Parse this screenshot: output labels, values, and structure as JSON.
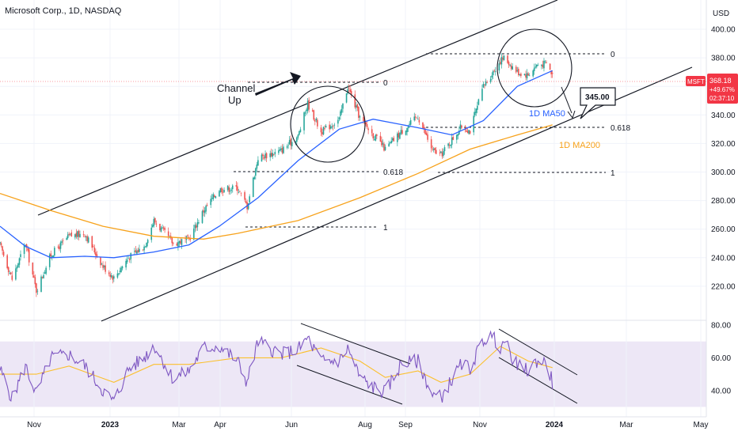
{
  "header": {
    "title": "Microsoft Corp., 1D, NASDAQ"
  },
  "currency": "USD",
  "price_tag": {
    "symbol": "MSFT",
    "price": "368.18",
    "change": "+49.67%",
    "countdown": "02:37:10"
  },
  "annotations": {
    "channel_line1": "Channel",
    "channel_line2": "Up",
    "target": "345.00",
    "ma50_label": "1D MA50",
    "ma200_label": "1D MA200",
    "fib_top_left": "0",
    "fib_mid_left": "0.618",
    "fib_bot_left": "1",
    "fib_top_right": "0",
    "fib_mid_right": "0.618",
    "fib_bot_right": "1"
  },
  "colors": {
    "up": "#26a69a",
    "down": "#ef5350",
    "ma50": "#2962ff",
    "ma200": "#f7a21b",
    "rsi": "#7e57c2",
    "rsi_ma": "#fbc02d",
    "band": "#ede7f6",
    "line": "#131722",
    "price_tag": "#f23645"
  },
  "chart_data": [
    {
      "type": "candlestick",
      "ylim": [
        210,
        410
      ],
      "yticks": [
        "400.00",
        "380.00",
        "360.00",
        "340.00",
        "320.00",
        "300.00",
        "280.00",
        "260.00",
        "240.00",
        "220.00"
      ],
      "xticks": [
        "Nov",
        "2023",
        "Mar",
        "Apr",
        "Jun",
        "Aug",
        "Sep",
        "Nov",
        "2024",
        "Mar",
        "May"
      ],
      "last_price": 368.18,
      "price_path": [
        [
          "2022-10-04",
          249
        ],
        [
          "2022-10-14",
          225
        ],
        [
          "2022-10-25",
          250
        ],
        [
          "2022-11-03",
          217
        ],
        [
          "2022-11-15",
          242
        ],
        [
          "2022-11-30",
          255
        ],
        [
          "2022-12-13",
          257
        ],
        [
          "2022-12-28",
          234
        ],
        [
          "2023-01-06",
          226
        ],
        [
          "2023-01-18",
          240
        ],
        [
          "2023-01-31",
          248
        ],
        [
          "2023-02-08",
          266
        ],
        [
          "2023-02-24",
          250
        ],
        [
          "2023-03-09",
          253
        ],
        [
          "2023-03-21",
          273
        ],
        [
          "2023-04-03",
          288
        ],
        [
          "2023-04-18",
          289
        ],
        [
          "2023-04-26",
          276
        ],
        [
          "2023-05-05",
          310
        ],
        [
          "2023-05-24",
          315
        ],
        [
          "2023-06-07",
          325
        ],
        [
          "2023-06-15",
          348
        ],
        [
          "2023-06-26",
          328
        ],
        [
          "2023-07-11",
          337
        ],
        [
          "2023-07-18",
          360
        ],
        [
          "2023-07-28",
          338
        ],
        [
          "2023-08-08",
          326
        ],
        [
          "2023-08-18",
          316
        ],
        [
          "2023-08-31",
          328
        ],
        [
          "2023-09-14",
          339
        ],
        [
          "2023-09-26",
          315
        ],
        [
          "2023-10-03",
          312
        ],
        [
          "2023-10-20",
          332
        ],
        [
          "2023-10-27",
          329
        ],
        [
          "2023-11-07",
          360
        ],
        [
          "2023-11-14",
          369
        ],
        [
          "2023-11-21",
          378
        ],
        [
          "2023-11-24",
          380
        ],
        [
          "2023-12-05",
          370
        ],
        [
          "2023-12-14",
          368
        ],
        [
          "2023-12-21",
          375
        ],
        [
          "2023-12-29",
          376
        ],
        [
          "2024-01-03",
          368
        ]
      ],
      "ma50": [
        [
          "2022-10-04",
          262
        ],
        [
          "2022-10-25",
          248
        ],
        [
          "2022-11-15",
          240
        ],
        [
          "2022-12-13",
          241
        ],
        [
          "2023-01-06",
          240
        ],
        [
          "2023-02-08",
          244
        ],
        [
          "2023-03-09",
          249
        ],
        [
          "2023-04-03",
          262
        ],
        [
          "2023-05-05",
          282
        ],
        [
          "2023-06-07",
          308
        ],
        [
          "2023-07-11",
          330
        ],
        [
          "2023-08-08",
          337
        ],
        [
          "2023-09-14",
          331
        ],
        [
          "2023-10-12",
          326
        ],
        [
          "2023-11-07",
          336
        ],
        [
          "2023-12-05",
          360
        ],
        [
          "2024-01-03",
          371
        ]
      ],
      "ma200": [
        [
          "2022-10-04",
          285
        ],
        [
          "2022-11-15",
          273
        ],
        [
          "2022-12-28",
          262
        ],
        [
          "2023-02-08",
          255
        ],
        [
          "2023-03-21",
          253
        ],
        [
          "2023-04-18",
          257
        ],
        [
          "2023-06-07",
          266
        ],
        [
          "2023-07-28",
          282
        ],
        [
          "2023-09-14",
          299
        ],
        [
          "2023-10-27",
          316
        ],
        [
          "2023-12-05",
          326
        ],
        [
          "2024-01-03",
          333
        ]
      ],
      "ma50_label": "1D MA50",
      "ma200_label": "1D MA200"
    },
    {
      "type": "line",
      "ylim": [
        25,
        82
      ],
      "yticks": [
        "80.00",
        "60.00",
        "40.00"
      ],
      "band": [
        30,
        70
      ],
      "rsi_path": [
        [
          "2022-10-04",
          53
        ],
        [
          "2022-10-14",
          35
        ],
        [
          "2022-10-25",
          55
        ],
        [
          "2022-11-03",
          38
        ],
        [
          "2022-11-15",
          60
        ],
        [
          "2022-11-30",
          62
        ],
        [
          "2022-12-13",
          55
        ],
        [
          "2022-12-28",
          40
        ],
        [
          "2023-01-06",
          33
        ],
        [
          "2023-01-18",
          53
        ],
        [
          "2023-01-31",
          60
        ],
        [
          "2023-02-08",
          68
        ],
        [
          "2023-02-24",
          47
        ],
        [
          "2023-03-09",
          52
        ],
        [
          "2023-03-21",
          66
        ],
        [
          "2023-04-03",
          67
        ],
        [
          "2023-04-18",
          58
        ],
        [
          "2023-04-26",
          45
        ],
        [
          "2023-05-05",
          70
        ],
        [
          "2023-05-24",
          62
        ],
        [
          "2023-06-07",
          65
        ],
        [
          "2023-06-15",
          72
        ],
        [
          "2023-06-26",
          58
        ],
        [
          "2023-07-11",
          58
        ],
        [
          "2023-07-18",
          66
        ],
        [
          "2023-07-28",
          48
        ],
        [
          "2023-08-08",
          42
        ],
        [
          "2023-08-18",
          39
        ],
        [
          "2023-08-31",
          56
        ],
        [
          "2023-09-14",
          58
        ],
        [
          "2023-09-26",
          37
        ],
        [
          "2023-10-03",
          36
        ],
        [
          "2023-10-20",
          56
        ],
        [
          "2023-10-27",
          54
        ],
        [
          "2023-11-07",
          71
        ],
        [
          "2023-11-14",
          73
        ],
        [
          "2023-11-21",
          67
        ],
        [
          "2023-11-24",
          70
        ],
        [
          "2023-12-05",
          55
        ],
        [
          "2023-12-14",
          52
        ],
        [
          "2023-12-21",
          58
        ],
        [
          "2023-12-29",
          57
        ],
        [
          "2024-01-03",
          45
        ]
      ],
      "rsi_ma": [
        [
          "2022-10-04",
          50
        ],
        [
          "2022-11-03",
          50
        ],
        [
          "2022-11-30",
          55
        ],
        [
          "2023-01-06",
          45
        ],
        [
          "2023-02-08",
          56
        ],
        [
          "2023-03-09",
          56
        ],
        [
          "2023-04-18",
          60
        ],
        [
          "2023-05-24",
          60
        ],
        [
          "2023-06-26",
          66
        ],
        [
          "2023-07-28",
          58
        ],
        [
          "2023-08-18",
          48
        ],
        [
          "2023-09-14",
          52
        ],
        [
          "2023-10-03",
          45
        ],
        [
          "2023-10-27",
          50
        ],
        [
          "2023-11-21",
          67
        ],
        [
          "2023-12-14",
          58
        ],
        [
          "2024-01-03",
          54
        ]
      ]
    }
  ]
}
